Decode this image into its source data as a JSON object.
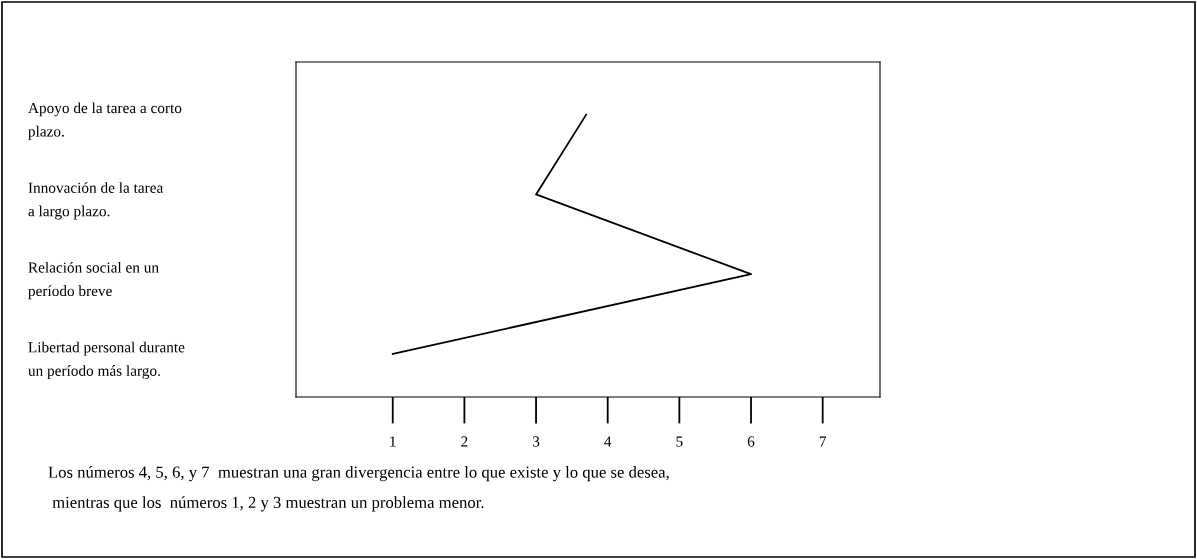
{
  "chart_data": {
    "type": "line",
    "orientation": "horizontal",
    "categories": [
      "Apoyo de la tarea a corto\nplazo.",
      "Innovación de la tarea\na largo plazo.",
      "Relación social en un\nperíodo breve",
      "Libertad personal durante\nun período más largo."
    ],
    "values": [
      3.7,
      3,
      6,
      1
    ],
    "color": "#000000",
    "xlim": [
      -0.35,
      7.8
    ],
    "xticks": [
      1,
      2,
      3,
      4,
      5,
      6,
      7
    ],
    "grid": false,
    "marker": "none",
    "line_style": "solid",
    "annotations": [
      "Los números 4, 5, 6, y 7  muestran una gran divergencia entre lo que existe y lo que se desea,\n mientras que los  números 1, 2 y 3 muestran un problema menor."
    ]
  }
}
